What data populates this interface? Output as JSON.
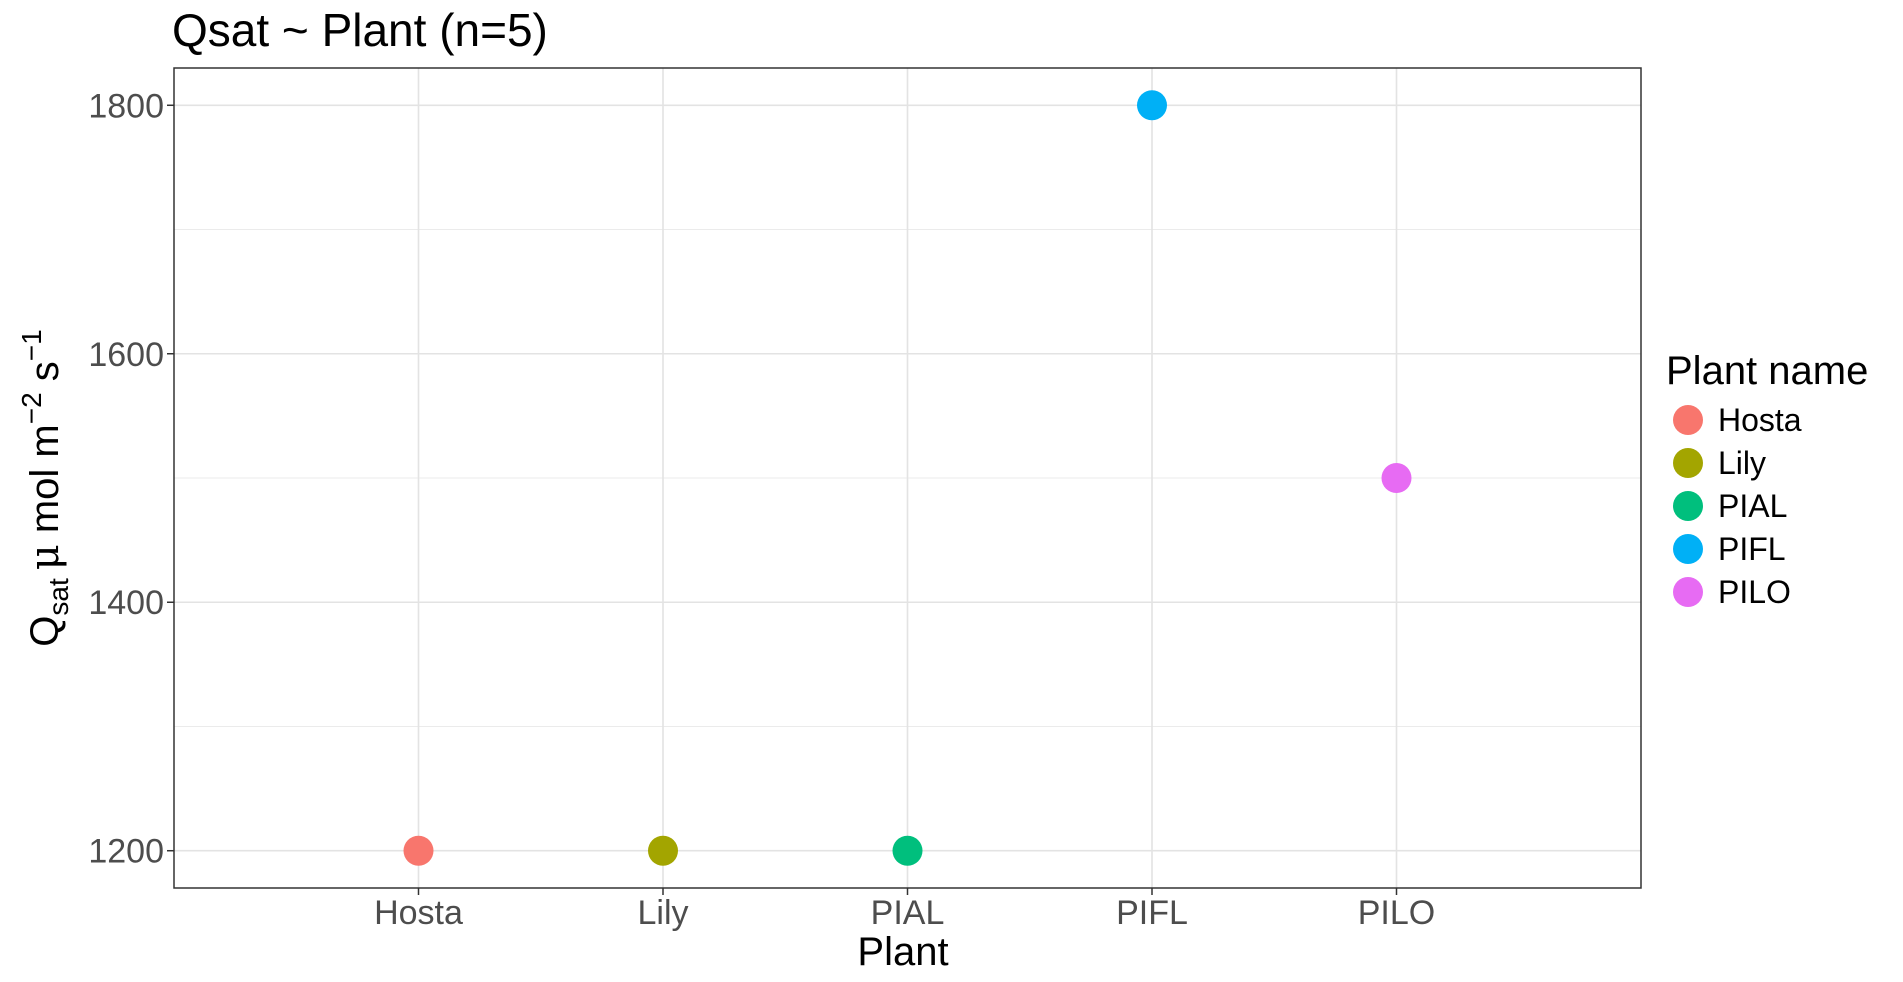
{
  "chart_data": {
    "type": "scatter",
    "title": "Qsat ~ Plant (n=5)",
    "xlabel": "Plant",
    "ylabel": {
      "main": "Q",
      "sub": "sat",
      "unit_mu": "μ",
      "unit_mol": " mol m",
      "exp1": "−2",
      "unit_s": " s",
      "exp2": "−1"
    },
    "categories": [
      "Hosta",
      "Lily",
      "PIAL",
      "PIFL",
      "PILO"
    ],
    "values": [
      1200,
      1200,
      1200,
      1800,
      1500
    ],
    "colors": [
      "#F8766D",
      "#A3A500",
      "#00BF7D",
      "#00B0F6",
      "#E76BF3"
    ],
    "ylim": [
      1170,
      1830
    ],
    "yticks": [
      1200,
      1400,
      1600,
      1800
    ],
    "yticks_minor": [
      1300,
      1500,
      1700
    ],
    "grid": true,
    "legend": {
      "title": "Plant name",
      "position": "right",
      "entries": [
        "Hosta",
        "Lily",
        "PIAL",
        "PIFL",
        "PILO"
      ]
    }
  }
}
